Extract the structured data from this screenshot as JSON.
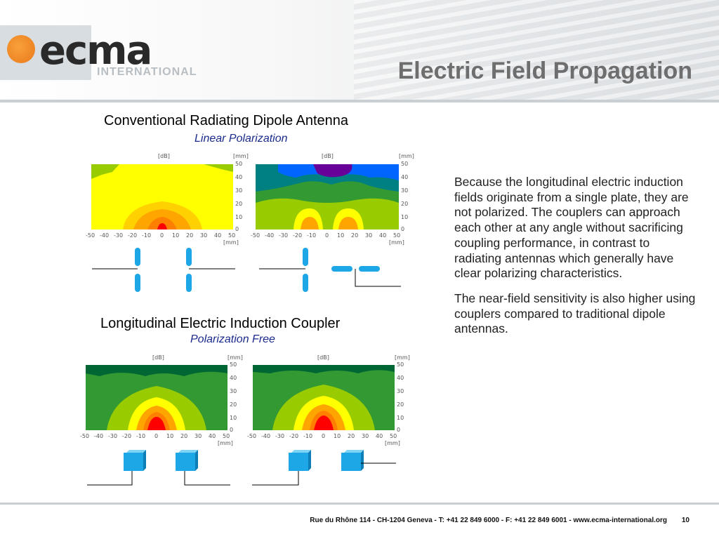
{
  "header": {
    "logo_word": "ecma",
    "logo_sub": "INTERNATIONAL",
    "title": "Electric Field Propagation"
  },
  "sections": [
    {
      "title": "Conventional Radiating Dipole Antenna",
      "subtitle": "Linear Polarization",
      "plots": [
        {
          "unit_top_left": "[dB]",
          "unit_top_right": "[mm]",
          "unit_bottom": "[mm]"
        },
        {
          "unit_top_left": "[dB]",
          "unit_top_right": "[mm]",
          "unit_bottom": "[mm]"
        }
      ]
    },
    {
      "title": "Longitudinal Electric Induction Coupler",
      "subtitle": "Polarization Free",
      "plots": [
        {
          "unit_top_left": "[dB]",
          "unit_top_right": "[mm]",
          "unit_bottom": "[mm]"
        },
        {
          "unit_top_left": "[dB]",
          "unit_top_right": "[mm]",
          "unit_bottom": "[mm]"
        }
      ]
    }
  ],
  "axis": {
    "x_ticks": [
      "-50",
      "-40",
      "-30",
      "-20",
      "-10",
      "0",
      "10",
      "20",
      "30",
      "40",
      "50"
    ],
    "y_ticks": [
      "50",
      "40",
      "30",
      "20",
      "10",
      "0"
    ]
  },
  "colors": {
    "yellow": "#ffff00",
    "orange": "#ffa500",
    "red": "#ff0000",
    "light_green": "#99cc00",
    "green": "#339933",
    "dark_green": "#006633",
    "teal": "#008080",
    "blue": "#0066ff",
    "purple": "#660099",
    "antenna": "#1ea7e6"
  },
  "body": {
    "paragraph1": "Because the longitudinal electric induction fields originate from a single plate, they are not polarized. The couplers can approach each other at any angle without sacrificing coupling performance, in contrast to radiating antennas which generally have clear polarizing characteristics.",
    "paragraph2": "The near-field sensitivity is also higher using couplers compared to traditional dipole antennas."
  },
  "footer": {
    "address": "Rue du Rhône 114 - CH-1204 Geneva - T: +41 22 849 6000 - F: +41 22 849 6001 - www.ecma-international.org",
    "page_number": "10"
  }
}
